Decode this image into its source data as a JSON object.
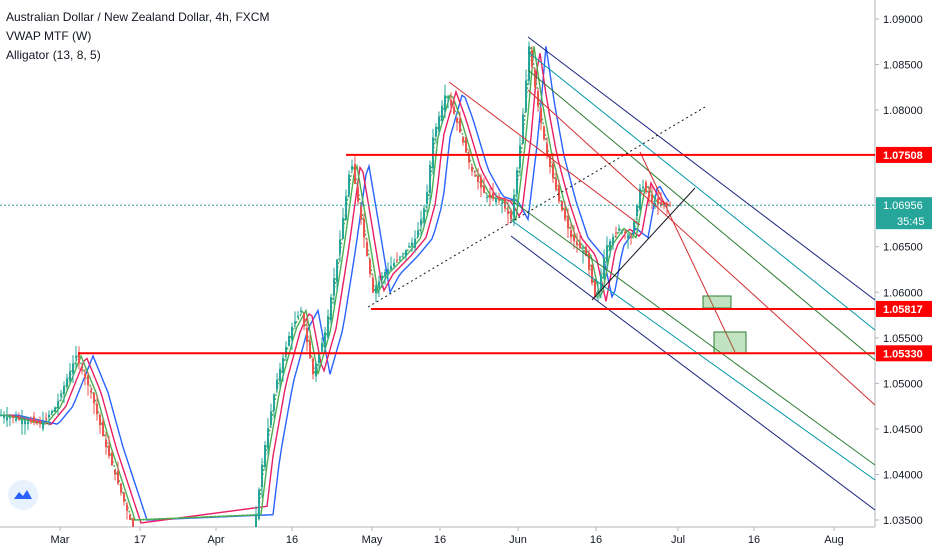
{
  "chart_data": {
    "type": "candlestick",
    "title": "Australian Dollar / New Zealand Dollar, 4h, FXCM",
    "indicators": [
      "VWAP MTF (W)",
      "Alligator (13, 8, 5)"
    ],
    "x_ticks": [
      "Mar",
      "17",
      "Apr",
      "16",
      "May",
      "16",
      "Jun",
      "16",
      "Jul",
      "16",
      "Aug"
    ],
    "y_ticks": [
      "1.09000",
      "1.08500",
      "1.08000",
      "1.07500",
      "1.07000",
      "1.06500",
      "1.06000",
      "1.05500",
      "1.05000",
      "1.04500",
      "1.04000",
      "1.03500"
    ],
    "ylim": [
      1.0345,
      1.0915
    ],
    "levels": [
      {
        "value": 1.07508,
        "label": "1.07508",
        "color": "#ff0000"
      },
      {
        "value": 1.05817,
        "label": "1.05817",
        "color": "#ff0000"
      },
      {
        "value": 1.0533,
        "label": "1.05330",
        "color": "#ff0000"
      }
    ],
    "current_price": {
      "value": 1.06956,
      "label": "1.06956",
      "countdown": "35:45",
      "color": "#26a69a"
    },
    "colors": {
      "up": "#26a69a",
      "down": "#ef5350",
      "jaw": "#2962ff",
      "teeth": "#e91e63",
      "lips": "#4caf50",
      "vwap": "#4caf50"
    }
  }
}
